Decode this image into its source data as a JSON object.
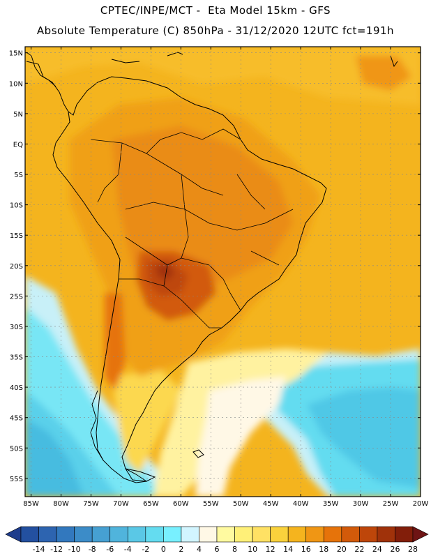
{
  "header": {
    "line1": "CPTEC/INPE/MCT -  Eta Model 15km - GFS",
    "line2": "Absolute Temperature (C) 850hPa - 31/12/2020 12UTC fct=191h"
  },
  "map": {
    "lat_range": [
      -58,
      16
    ],
    "lon_range": [
      -86,
      -20
    ],
    "lat_labels": [
      "15N",
      "10N",
      "5N",
      "EQ",
      "5S",
      "10S",
      "15S",
      "20S",
      "25S",
      "30S",
      "35S",
      "40S",
      "45S",
      "50S",
      "55S"
    ],
    "lon_labels": [
      "85W",
      "80W",
      "75W",
      "70W",
      "65W",
      "60W",
      "55W",
      "50W",
      "45W",
      "40W",
      "35W",
      "30W",
      "25W",
      "20W"
    ]
  },
  "colorbar": {
    "labels": [
      "-14",
      "-12",
      "-10",
      "-8",
      "-6",
      "-4",
      "-2",
      "0",
      "2",
      "4",
      "6",
      "8",
      "10",
      "12",
      "14",
      "16",
      "18",
      "20",
      "22",
      "24",
      "26",
      "28"
    ],
    "colors": [
      "#1e3c8c",
      "#2350a0",
      "#2d64b0",
      "#3278be",
      "#3c8cc8",
      "#46a0d2",
      "#50b4dc",
      "#5ac8e6",
      "#64dcf0",
      "#78f0ff",
      "#d2f5ff",
      "#fff8e6",
      "#fffaa0",
      "#fff078",
      "#ffe164",
      "#fad23c",
      "#f5b41e",
      "#f09614",
      "#e6730a",
      "#d25a0a",
      "#be460a",
      "#a0320a",
      "#821e0a",
      "#6e1414"
    ],
    "unit_note": "temperature in degrees C"
  }
}
